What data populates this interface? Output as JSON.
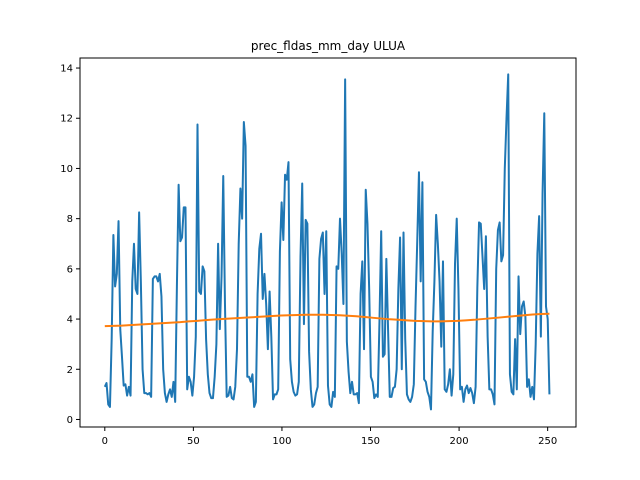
{
  "chart_data": {
    "type": "line",
    "title": "prec_fldas_mm_day ULUA",
    "xlabel": "",
    "ylabel": "",
    "xlim": [
      -14,
      266
    ],
    "ylim": [
      -0.3,
      14.4
    ],
    "xticks": [
      0,
      50,
      100,
      150,
      200,
      250
    ],
    "yticks": [
      0,
      2,
      4,
      6,
      8,
      10,
      12,
      14
    ],
    "grid": false,
    "series": [
      {
        "name": "",
        "color": "#1f77b4",
        "values": [
          1.3,
          1.45,
          0.6,
          0.5,
          3.2,
          7.35,
          5.3,
          5.8,
          7.9,
          3.6,
          2.5,
          1.35,
          1.4,
          0.95,
          1.3,
          0.95,
          5.5,
          7.0,
          5.2,
          5.0,
          8.25,
          5.5,
          2.0,
          1.05,
          1.05,
          1.0,
          1.05,
          0.9,
          5.6,
          5.7,
          5.7,
          5.5,
          5.8,
          4.9,
          2.0,
          1.05,
          0.7,
          1.0,
          1.2,
          0.9,
          1.5,
          0.7,
          5.3,
          9.35,
          7.1,
          7.25,
          8.45,
          8.45,
          1.2,
          1.7,
          1.5,
          0.95,
          1.7,
          3.3,
          11.75,
          5.1,
          5.0,
          6.1,
          5.9,
          3.2,
          1.8,
          1.05,
          0.85,
          0.85,
          1.7,
          3.0,
          7.0,
          3.6,
          5.7,
          9.7,
          4.6,
          0.9,
          0.95,
          1.3,
          0.85,
          0.8,
          1.3,
          2.8,
          7.0,
          9.2,
          8.0,
          11.85,
          10.9,
          1.7,
          1.7,
          1.5,
          1.8,
          0.5,
          0.7,
          5.0,
          6.8,
          7.4,
          4.8,
          5.8,
          4.6,
          2.8,
          5.1,
          3.3,
          0.8,
          1.0,
          1.0,
          1.2,
          6.7,
          8.65,
          7.15,
          9.75,
          9.55,
          10.25,
          2.4,
          1.5,
          1.1,
          0.95,
          1.0,
          1.5,
          6.5,
          9.4,
          3.8,
          7.95,
          7.8,
          2.7,
          1.2,
          0.5,
          0.6,
          1.05,
          1.3,
          6.4,
          7.2,
          7.45,
          5.0,
          7.5,
          1.35,
          0.6,
          0.5,
          1.1,
          0.9,
          6.1,
          6.0,
          8.0,
          6.6,
          4.6,
          13.55,
          3.1,
          1.9,
          1.05,
          1.5,
          1.0,
          1.0,
          1.05,
          0.65,
          5.0,
          6.3,
          2.8,
          9.15,
          7.8,
          5.2,
          1.7,
          1.5,
          0.85,
          1.0,
          0.9,
          3.9,
          7.5,
          2.5,
          2.6,
          6.4,
          3.6,
          0.9,
          0.9,
          1.25,
          1.3,
          2.0,
          5.2,
          7.25,
          2.0,
          7.45,
          3.2,
          1.0,
          0.8,
          0.7,
          0.9,
          1.4,
          4.5,
          7.1,
          9.85,
          5.5,
          9.45,
          1.6,
          1.5,
          1.1,
          0.9,
          0.4,
          3.5,
          5.5,
          8.15,
          7.0,
          5.5,
          2.9,
          6.3,
          1.2,
          1.1,
          1.4,
          2.0,
          0.95,
          1.8,
          6.2,
          8.0,
          5.2,
          1.2,
          1.3,
          0.7,
          1.2,
          1.35,
          1.05,
          1.25,
          1.05,
          0.65,
          1.3,
          5.25,
          7.85,
          7.8,
          6.5,
          5.2,
          7.3,
          3.3,
          1.2,
          1.2,
          1.0,
          0.6,
          6.0,
          7.55,
          7.85,
          6.3,
          6.55,
          10.0,
          12.0,
          13.75,
          1.8,
          1.1,
          1.0,
          3.2,
          1.2,
          5.7,
          3.4,
          4.5,
          4.7,
          4.1,
          1.3,
          1.6,
          0.9,
          1.3,
          0.8,
          3.0,
          6.6,
          8.1,
          3.3,
          9.0,
          12.2,
          4.5,
          4.0,
          1.0
        ]
      },
      {
        "name": "",
        "color": "#ff7f0e",
        "values": [
          3.72,
          3.73,
          3.74,
          3.76,
          3.78,
          3.8,
          3.82,
          3.84,
          3.86,
          3.88,
          3.91,
          3.93,
          3.96,
          3.98,
          4.0,
          4.02,
          4.04,
          4.06,
          4.08,
          4.1,
          4.12,
          4.14,
          4.15,
          4.16,
          4.17,
          4.17,
          4.17,
          4.16,
          4.15,
          4.13,
          4.11,
          4.08,
          4.05,
          4.02,
          3.99,
          3.97,
          3.95,
          3.93,
          3.92,
          3.91,
          3.91,
          3.92,
          3.93,
          3.95,
          3.97,
          4.0,
          4.03,
          4.06,
          4.09,
          4.12,
          4.15,
          4.18,
          4.2,
          4.21
        ]
      }
    ]
  }
}
